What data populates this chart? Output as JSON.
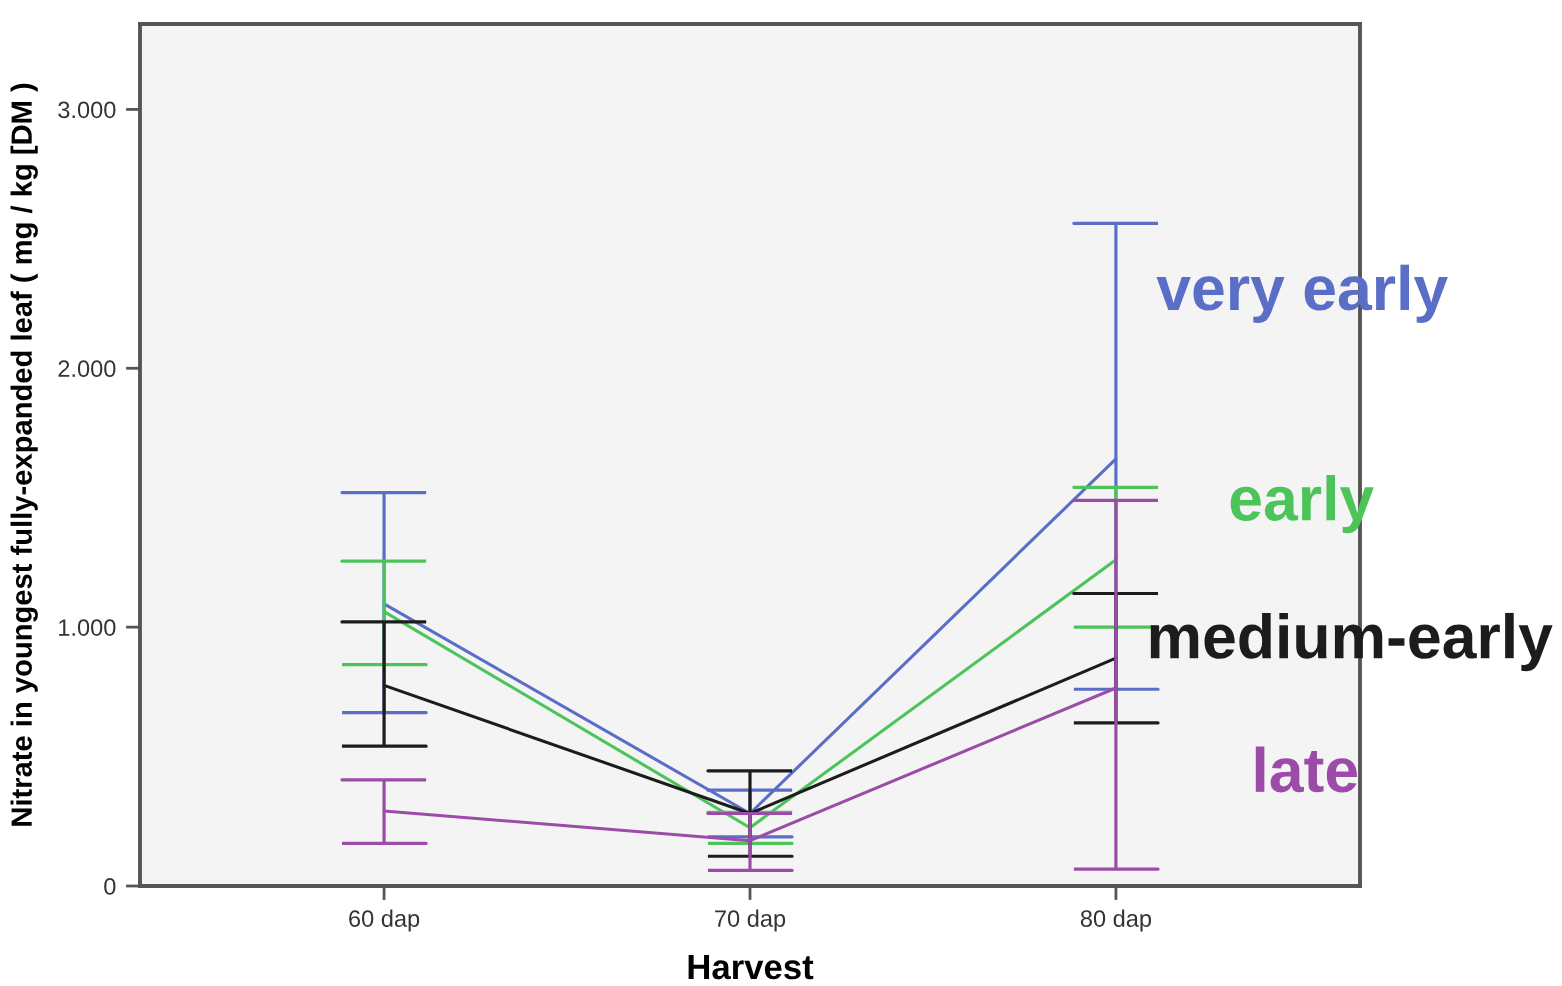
{
  "chart_data": {
    "type": "line",
    "xlabel": "Harvest",
    "ylabel": "Nitrate in youngest fully-expanded leaf ( mg / kg [DM )",
    "categories": [
      "60 dap",
      "70 dap",
      "80 dap"
    ],
    "ylim": [
      0,
      3330
    ],
    "yticks": [
      0,
      {
        "value": 1000,
        "label": "1.000"
      },
      {
        "value": 2000,
        "label": "2.000"
      },
      {
        "value": 3000,
        "label": "3.000"
      }
    ],
    "legend": "right",
    "series": [
      {
        "name": "very early",
        "color": "#5a6ec8",
        "values": [
          1090,
          280,
          1650
        ],
        "errors": [
          [
            670,
            1520
          ],
          [
            190,
            370
          ],
          [
            760,
            2560
          ]
        ]
      },
      {
        "name": "early",
        "color": "#4cc45a",
        "values": [
          1060,
          225,
          1260
        ],
        "errors": [
          [
            855,
            1255
          ],
          [
            165,
            285
          ],
          [
            1000,
            1540
          ]
        ]
      },
      {
        "name": "medium-early",
        "color": "#1c1c1c",
        "values": [
          775,
          280,
          880
        ],
        "errors": [
          [
            540,
            1020
          ],
          [
            115,
            445
          ],
          [
            630,
            1130
          ]
        ]
      },
      {
        "name": "late",
        "color": "#9c4ca8",
        "values": [
          290,
          175,
          765
        ],
        "errors": [
          [
            165,
            410
          ],
          [
            60,
            280
          ],
          [
            65,
            1490
          ]
        ]
      }
    ]
  }
}
